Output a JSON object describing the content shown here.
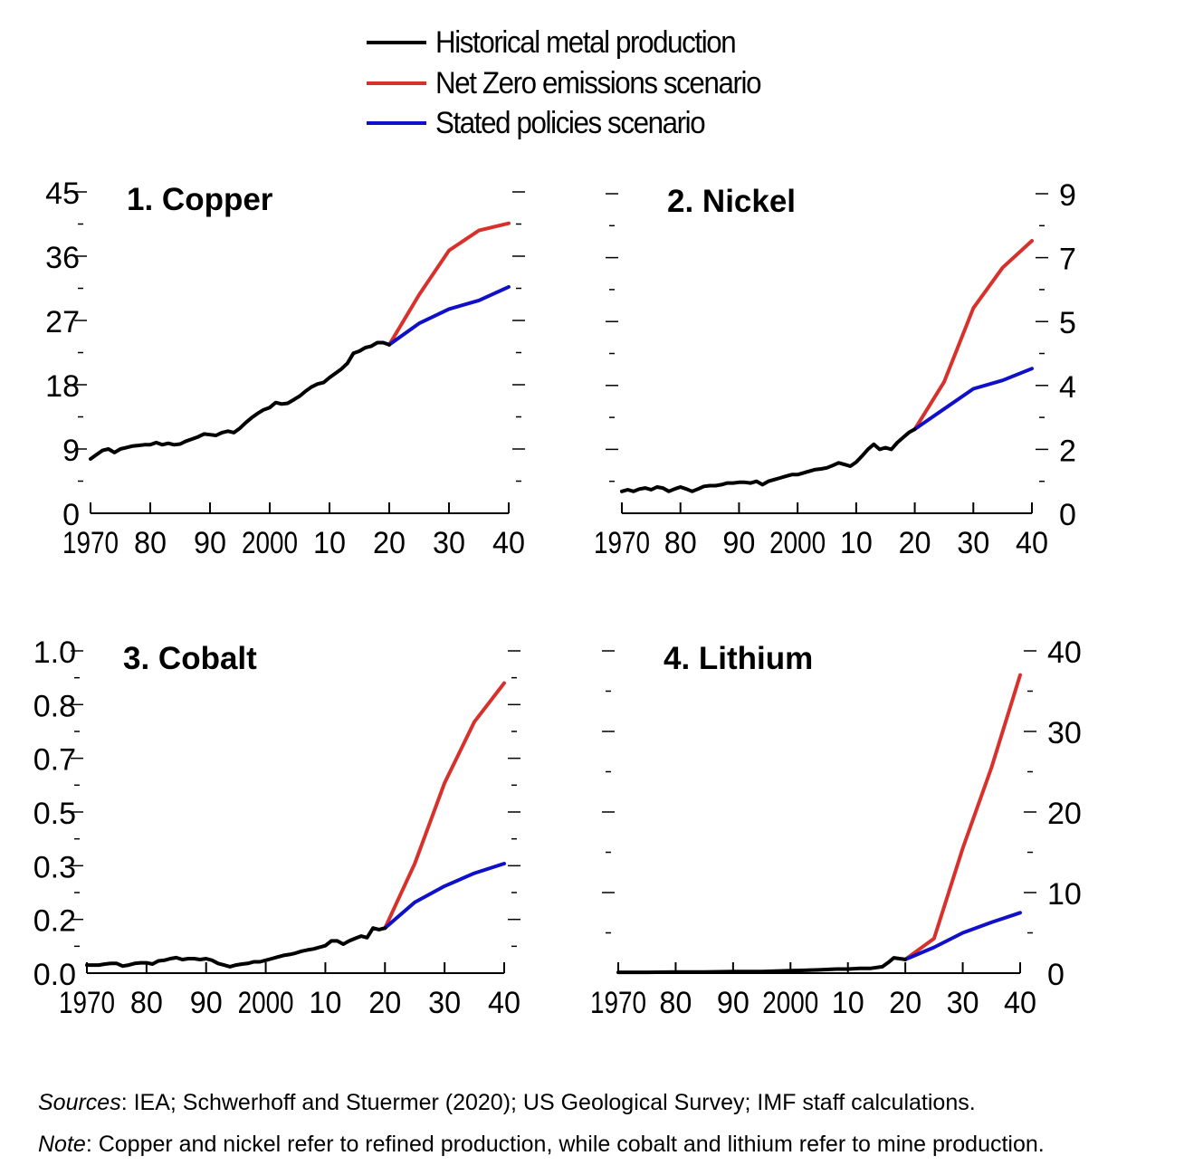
{
  "legend": {
    "historical": "Historical metal production",
    "nze": "Net Zero emissions scenario",
    "steps": "Stated policies scenario"
  },
  "colors": {
    "historical": "#000000",
    "nze": "#d8302b",
    "steps": "#1010c8"
  },
  "footer": {
    "sources_label": "Sources",
    "sources_text": ": IEA; Schwerhoff and Stuermer (2020); US Geological Survey; IMF staff calculations.",
    "note_label": "Note",
    "note_text": ": Copper and nickel refer to refined production, while cobalt and lithium refer to mine production."
  },
  "chart_data": [
    {
      "type": "line",
      "title": "1. Copper",
      "y_axis_side": "left",
      "ylim": [
        0,
        45
      ],
      "yticks": [
        "0",
        "9",
        "18",
        "27",
        "36",
        "45"
      ],
      "xlim": [
        1970,
        2040
      ],
      "xticks": [
        "1970",
        "80",
        "90",
        "2000",
        "10",
        "20",
        "30",
        "40"
      ],
      "series": [
        {
          "name": "Historical metal production",
          "key": "historical",
          "x": [
            1970,
            1971,
            1972,
            1973,
            1974,
            1975,
            1976,
            1977,
            1978,
            1979,
            1980,
            1981,
            1982,
            1983,
            1984,
            1985,
            1986,
            1987,
            1988,
            1989,
            1990,
            1991,
            1992,
            1993,
            1994,
            1995,
            1996,
            1997,
            1998,
            1999,
            2000,
            2001,
            2002,
            2003,
            2004,
            2005,
            2006,
            2007,
            2008,
            2009,
            2010,
            2011,
            2012,
            2013,
            2014,
            2015,
            2016,
            2017,
            2018,
            2019,
            2020
          ],
          "y": [
            7.6,
            8.2,
            8.8,
            9.0,
            8.5,
            9.0,
            9.2,
            9.4,
            9.5,
            9.6,
            9.6,
            9.9,
            9.6,
            9.8,
            9.6,
            9.7,
            10.1,
            10.4,
            10.7,
            11.1,
            11.0,
            10.9,
            11.3,
            11.5,
            11.3,
            11.9,
            12.7,
            13.4,
            14.0,
            14.5,
            14.8,
            15.5,
            15.3,
            15.4,
            15.9,
            16.4,
            17.1,
            17.7,
            18.1,
            18.3,
            19.0,
            19.6,
            20.2,
            21.0,
            22.4,
            22.7,
            23.2,
            23.4,
            23.9,
            23.9,
            23.6
          ]
        },
        {
          "name": "Net Zero emissions scenario",
          "key": "nze",
          "x": [
            2020,
            2025,
            2030,
            2035,
            2040
          ],
          "y": [
            23.6,
            30.6,
            36.8,
            39.6,
            40.6
          ]
        },
        {
          "name": "Stated policies scenario",
          "key": "steps",
          "x": [
            2020,
            2025,
            2030,
            2035,
            2040
          ],
          "y": [
            23.6,
            26.6,
            28.6,
            29.8,
            31.7
          ]
        }
      ]
    },
    {
      "type": "line",
      "title": "2. Nickel",
      "y_axis_side": "right",
      "ylim": [
        0,
        9.5
      ],
      "yticks": [
        "0",
        "2",
        "4",
        "5",
        "7",
        "9"
      ],
      "ytick_values": [
        0,
        1.9,
        3.8,
        5.7,
        7.6,
        9.5
      ],
      "xlim": [
        1970,
        2040
      ],
      "xticks": [
        "1970",
        "80",
        "90",
        "2000",
        "10",
        "20",
        "30",
        "40"
      ],
      "series": [
        {
          "name": "Historical metal production",
          "key": "historical",
          "x": [
            1970,
            1971,
            1972,
            1973,
            1974,
            1975,
            1976,
            1977,
            1978,
            1979,
            1980,
            1981,
            1982,
            1983,
            1984,
            1985,
            1986,
            1987,
            1988,
            1989,
            1990,
            1991,
            1992,
            1993,
            1994,
            1995,
            1996,
            1997,
            1998,
            1999,
            2000,
            2001,
            2002,
            2003,
            2004,
            2005,
            2006,
            2007,
            2008,
            2009,
            2010,
            2011,
            2012,
            2013,
            2014,
            2015,
            2016,
            2017,
            2018,
            2019,
            2020
          ],
          "y": [
            0.65,
            0.7,
            0.65,
            0.72,
            0.75,
            0.7,
            0.78,
            0.75,
            0.65,
            0.72,
            0.78,
            0.72,
            0.65,
            0.72,
            0.8,
            0.82,
            0.82,
            0.85,
            0.9,
            0.9,
            0.92,
            0.92,
            0.9,
            0.95,
            0.85,
            0.95,
            1.0,
            1.05,
            1.1,
            1.15,
            1.15,
            1.2,
            1.25,
            1.3,
            1.32,
            1.35,
            1.42,
            1.5,
            1.45,
            1.4,
            1.52,
            1.7,
            1.9,
            2.05,
            1.9,
            1.95,
            1.9,
            2.1,
            2.25,
            2.4,
            2.5
          ]
        },
        {
          "name": "Net Zero emissions scenario",
          "key": "nze",
          "x": [
            2020,
            2025,
            2030,
            2035,
            2040
          ],
          "y": [
            2.5,
            3.9,
            6.1,
            7.3,
            8.1
          ]
        },
        {
          "name": "Stated policies scenario",
          "key": "steps",
          "x": [
            2020,
            2025,
            2030,
            2035,
            2040
          ],
          "y": [
            2.5,
            3.1,
            3.7,
            3.95,
            4.3
          ]
        }
      ]
    },
    {
      "type": "line",
      "title": "3. Cobalt",
      "y_axis_side": "left",
      "ylim": [
        0,
        1.0
      ],
      "yticks": [
        "0.0",
        "0.2",
        "0.3",
        "0.5",
        "0.7",
        "0.8",
        "1.0"
      ],
      "ytick_values": [
        0,
        0.1667,
        0.3333,
        0.5,
        0.6667,
        0.8333,
        1.0
      ],
      "xlim": [
        1970,
        2040
      ],
      "xticks": [
        "1970",
        "80",
        "90",
        "2000",
        "10",
        "20",
        "30",
        "40"
      ],
      "series": [
        {
          "name": "Historical metal production",
          "key": "historical",
          "x": [
            1970,
            1971,
            1972,
            1973,
            1974,
            1975,
            1976,
            1977,
            1978,
            1979,
            1980,
            1981,
            1982,
            1983,
            1984,
            1985,
            1986,
            1987,
            1988,
            1989,
            1990,
            1991,
            1992,
            1993,
            1994,
            1995,
            1996,
            1997,
            1998,
            1999,
            2000,
            2001,
            2002,
            2003,
            2004,
            2005,
            2006,
            2007,
            2008,
            2009,
            2010,
            2011,
            2012,
            2013,
            2014,
            2015,
            2016,
            2017,
            2018,
            2019,
            2020
          ],
          "y": [
            0.025,
            0.025,
            0.025,
            0.028,
            0.03,
            0.03,
            0.022,
            0.025,
            0.03,
            0.032,
            0.032,
            0.028,
            0.038,
            0.04,
            0.045,
            0.048,
            0.042,
            0.045,
            0.045,
            0.042,
            0.045,
            0.04,
            0.03,
            0.025,
            0.02,
            0.025,
            0.028,
            0.03,
            0.035,
            0.035,
            0.04,
            0.045,
            0.05,
            0.055,
            0.058,
            0.062,
            0.068,
            0.072,
            0.075,
            0.08,
            0.085,
            0.1,
            0.1,
            0.09,
            0.1,
            0.108,
            0.115,
            0.11,
            0.14,
            0.135,
            0.14
          ]
        },
        {
          "name": "Net Zero emissions scenario",
          "key": "nze",
          "x": [
            2020,
            2025,
            2030,
            2035,
            2040
          ],
          "y": [
            0.14,
            0.34,
            0.59,
            0.78,
            0.9
          ]
        },
        {
          "name": "Stated policies scenario",
          "key": "steps",
          "x": [
            2020,
            2025,
            2030,
            2035,
            2040
          ],
          "y": [
            0.14,
            0.22,
            0.27,
            0.31,
            0.34
          ]
        }
      ]
    },
    {
      "type": "line",
      "title": "4. Lithium",
      "y_axis_side": "right",
      "ylim": [
        0,
        40
      ],
      "yticks": [
        "0",
        "10",
        "20",
        "30",
        "40"
      ],
      "xlim": [
        1970,
        2040
      ],
      "xticks": [
        "1970",
        "80",
        "90",
        "2000",
        "10",
        "20",
        "30",
        "40"
      ],
      "series": [
        {
          "name": "Historical metal production",
          "key": "historical",
          "x": [
            1970,
            1975,
            1980,
            1985,
            1990,
            1995,
            2000,
            2005,
            2008,
            2010,
            2012,
            2014,
            2016,
            2017,
            2018,
            2019,
            2020
          ],
          "y": [
            0.1,
            0.1,
            0.15,
            0.15,
            0.2,
            0.2,
            0.3,
            0.4,
            0.5,
            0.5,
            0.6,
            0.6,
            0.8,
            1.3,
            1.9,
            1.8,
            1.7
          ]
        },
        {
          "name": "Net Zero emissions scenario",
          "key": "nze",
          "x": [
            2020,
            2025,
            2030,
            2035,
            2040
          ],
          "y": [
            1.7,
            4.3,
            15.5,
            25.5,
            37.0
          ]
        },
        {
          "name": "Stated policies scenario",
          "key": "steps",
          "x": [
            2020,
            2025,
            2030,
            2035,
            2040
          ],
          "y": [
            1.7,
            3.2,
            5.0,
            6.3,
            7.5
          ]
        }
      ]
    }
  ]
}
